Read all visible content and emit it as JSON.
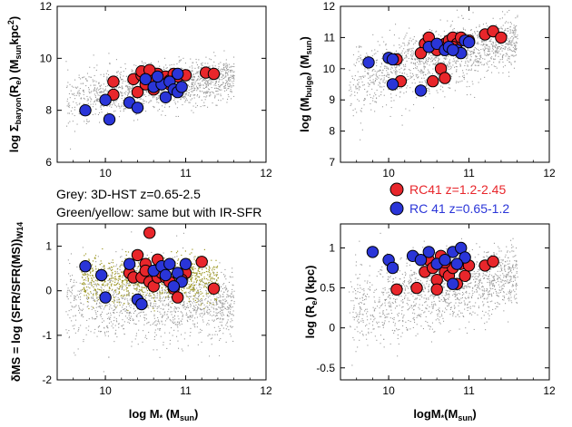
{
  "colors": {
    "grey": "#9a9a9a",
    "olive": "#9f9a2a",
    "red": "#e8262b",
    "blue": "#2a35d8",
    "outline": "#000000",
    "legend_red_text": "#e8262b",
    "legend_blue_text": "#2a35d8"
  },
  "notes": {
    "line1": "Grey: 3D-HST z=0.65-2.5",
    "line2": "Green/yellow: same but with IR-SFR"
  },
  "legend": {
    "red_label": "RC41 z=1.2-2.45",
    "blue_label": "RC 41 z=0.65-1.2"
  },
  "chart_data": [
    {
      "id": "top-left",
      "type": "scatter",
      "title": "",
      "xlabel": "",
      "ylabel": "log Σbaryon(Re)  (Msun kpc-2)",
      "ylabel_parts": {
        "pre": "log Σ",
        "sub1": "baryon",
        "mid": "(R",
        "sub2": "e",
        "post": ")   (M",
        "sub3": "sun",
        "post2": "kpc",
        "sup": "2",
        "end": ")"
      },
      "xlim": [
        9.4,
        12.0
      ],
      "ylim": [
        6,
        12
      ],
      "xticks": [
        10,
        11,
        12
      ],
      "yticks": [
        6,
        8,
        10,
        12
      ],
      "background_cloud": {
        "name": "3D-HST",
        "color": "grey",
        "x_range": [
          9.5,
          11.6
        ],
        "y_center": [
          8.4,
          9.3
        ],
        "spread": 0.55
      },
      "series": [
        {
          "name": "RC41 z=1.2-2.45",
          "color": "red",
          "points": [
            [
              10.1,
              9.1
            ],
            [
              10.35,
              9.2
            ],
            [
              10.45,
              9.35
            ],
            [
              10.5,
              9.0
            ],
            [
              10.55,
              9.3
            ],
            [
              10.6,
              9.2
            ],
            [
              10.65,
              9.4
            ],
            [
              10.7,
              9.1
            ],
            [
              10.75,
              9.3
            ],
            [
              10.8,
              9.15
            ],
            [
              10.85,
              9.4
            ],
            [
              10.9,
              9.3
            ],
            [
              11.25,
              9.45
            ],
            [
              11.35,
              9.4
            ],
            [
              10.4,
              8.7
            ],
            [
              10.6,
              8.8
            ],
            [
              10.1,
              8.6
            ],
            [
              10.45,
              9.5
            ],
            [
              10.55,
              9.55
            ],
            [
              11.0,
              9.35
            ],
            [
              10.8,
              9.0
            ]
          ]
        },
        {
          "name": "RC 41 z=0.65-1.2",
          "color": "blue",
          "points": [
            [
              9.75,
              8.0
            ],
            [
              10.0,
              8.4
            ],
            [
              10.05,
              7.65
            ],
            [
              10.3,
              8.3
            ],
            [
              10.4,
              8.1
            ],
            [
              10.5,
              9.2
            ],
            [
              10.6,
              8.9
            ],
            [
              10.7,
              9.0
            ],
            [
              10.75,
              8.5
            ],
            [
              10.8,
              9.1
            ],
            [
              10.85,
              8.8
            ],
            [
              10.9,
              8.7
            ],
            [
              10.95,
              8.9
            ],
            [
              10.65,
              9.3
            ],
            [
              10.9,
              9.4
            ]
          ]
        }
      ]
    },
    {
      "id": "top-right",
      "type": "scatter",
      "title": "",
      "xlabel": "",
      "ylabel": "log (Mbulge)  (Msun)",
      "xlim": [
        9.4,
        12.0
      ],
      "ylim": [
        7,
        12
      ],
      "xticks": [
        10,
        11,
        12
      ],
      "yticks": [
        7,
        8,
        9,
        10,
        11,
        12
      ],
      "background_cloud": {
        "name": "3D-HST",
        "color": "grey",
        "x_range": [
          9.5,
          11.6
        ],
        "y_center": [
          9.6,
          10.9
        ],
        "spread": 0.6
      },
      "series": [
        {
          "name": "RC41 z=1.2-2.45",
          "color": "red",
          "points": [
            [
              10.1,
              10.3
            ],
            [
              10.15,
              9.6
            ],
            [
              10.45,
              10.8
            ],
            [
              10.5,
              11.0
            ],
            [
              10.55,
              10.7
            ],
            [
              10.6,
              10.6
            ],
            [
              10.65,
              10.0
            ],
            [
              10.7,
              10.8
            ],
            [
              10.75,
              10.9
            ],
            [
              10.8,
              11.0
            ],
            [
              10.85,
              10.8
            ],
            [
              10.9,
              11.0
            ],
            [
              11.2,
              11.1
            ],
            [
              11.3,
              11.2
            ],
            [
              11.4,
              11.0
            ],
            [
              10.4,
              10.5
            ],
            [
              10.55,
              9.6
            ],
            [
              10.7,
              9.7
            ],
            [
              10.8,
              10.7
            ],
            [
              11.0,
              10.9
            ]
          ]
        },
        {
          "name": "RC 41 z=0.65-1.2",
          "color": "blue",
          "points": [
            [
              9.75,
              10.2
            ],
            [
              10.0,
              10.35
            ],
            [
              10.05,
              10.3
            ],
            [
              10.05,
              9.5
            ],
            [
              10.4,
              9.3
            ],
            [
              10.5,
              10.7
            ],
            [
              10.6,
              10.8
            ],
            [
              10.7,
              10.6
            ],
            [
              10.75,
              10.7
            ],
            [
              10.85,
              10.6
            ],
            [
              10.9,
              10.5
            ],
            [
              10.95,
              10.9
            ],
            [
              11.0,
              10.85
            ],
            [
              10.8,
              10.6
            ]
          ]
        }
      ]
    },
    {
      "id": "bottom-left",
      "type": "scatter",
      "title": "",
      "xlabel": "log M* (Msun)",
      "ylabel": "δMS = log (SFR/SFR(MS))W14",
      "xlim": [
        9.4,
        12.0
      ],
      "ylim": [
        -2,
        1.5
      ],
      "xticks": [
        10,
        11,
        12
      ],
      "yticks": [
        -2,
        -1,
        0,
        1
      ],
      "background_cloud": {
        "name": "3D-HST",
        "color": "grey",
        "x_range": [
          9.5,
          11.6
        ],
        "y_center": [
          -0.2,
          -0.3
        ],
        "spread": 0.55
      },
      "olive_cloud": {
        "name": "IR-SFR",
        "color": "olive",
        "x_range": [
          9.7,
          11.4
        ],
        "y_center": [
          0.25,
          0.25
        ],
        "spread": 0.25
      },
      "series": [
        {
          "name": "RC41 z=1.2-2.45",
          "color": "red",
          "points": [
            [
              10.55,
              1.3
            ],
            [
              10.4,
              0.8
            ],
            [
              10.5,
              0.6
            ],
            [
              10.3,
              0.4
            ],
            [
              10.35,
              0.3
            ],
            [
              10.45,
              0.3
            ],
            [
              10.5,
              0.45
            ],
            [
              10.55,
              0.2
            ],
            [
              10.6,
              0.1
            ],
            [
              10.65,
              0.3
            ],
            [
              10.7,
              0.4
            ],
            [
              10.75,
              0.3
            ],
            [
              10.8,
              0.2
            ],
            [
              10.85,
              0.05
            ],
            [
              10.9,
              -0.15
            ],
            [
              11.0,
              0.4
            ],
            [
              11.2,
              0.65
            ],
            [
              11.35,
              0.05
            ],
            [
              10.65,
              0.7
            ],
            [
              10.95,
              0.25
            ]
          ]
        },
        {
          "name": "RC 41 z=0.65-1.2",
          "color": "blue",
          "points": [
            [
              9.75,
              0.55
            ],
            [
              9.95,
              0.35
            ],
            [
              10.0,
              -0.15
            ],
            [
              10.3,
              0.6
            ],
            [
              10.4,
              -0.2
            ],
            [
              10.45,
              -0.3
            ],
            [
              10.6,
              0.45
            ],
            [
              10.7,
              0.55
            ],
            [
              10.8,
              0.6
            ],
            [
              10.9,
              0.4
            ],
            [
              10.95,
              0.2
            ],
            [
              11.0,
              0.6
            ],
            [
              10.85,
              0.1
            ],
            [
              10.75,
              0.35
            ]
          ]
        }
      ]
    },
    {
      "id": "bottom-right",
      "type": "scatter",
      "title": "",
      "xlabel": "logM*(Msun)",
      "ylabel": "log (Re)  (kpc)",
      "xlim": [
        9.4,
        12.0
      ],
      "ylim": [
        -0.65,
        1.3
      ],
      "xticks": [
        10,
        11,
        12
      ],
      "yticks": [
        -0.5,
        0,
        0.5,
        1
      ],
      "background_cloud": {
        "name": "3D-HST",
        "color": "grey",
        "x_range": [
          9.5,
          11.6
        ],
        "y_center": [
          0.25,
          0.65
        ],
        "spread": 0.28
      },
      "series": [
        {
          "name": "RC41 z=1.2-2.45",
          "color": "red",
          "points": [
            [
              10.1,
              0.48
            ],
            [
              10.35,
              0.5
            ],
            [
              10.45,
              0.7
            ],
            [
              10.5,
              0.85
            ],
            [
              10.55,
              0.75
            ],
            [
              10.6,
              0.6
            ],
            [
              10.65,
              0.9
            ],
            [
              10.7,
              0.7
            ],
            [
              10.75,
              0.65
            ],
            [
              10.8,
              0.75
            ],
            [
              10.85,
              0.55
            ],
            [
              10.9,
              0.8
            ],
            [
              10.95,
              0.65
            ],
            [
              11.2,
              0.78
            ],
            [
              11.3,
              0.83
            ],
            [
              10.6,
              0.48
            ],
            [
              10.7,
              0.82
            ],
            [
              11.0,
              0.78
            ]
          ]
        },
        {
          "name": "RC 41 z=0.65-1.2",
          "color": "blue",
          "points": [
            [
              9.8,
              0.95
            ],
            [
              10.0,
              0.85
            ],
            [
              10.05,
              0.75
            ],
            [
              10.3,
              0.9
            ],
            [
              10.4,
              0.85
            ],
            [
              10.5,
              0.95
            ],
            [
              10.6,
              0.8
            ],
            [
              10.7,
              0.85
            ],
            [
              10.8,
              0.95
            ],
            [
              10.9,
              1.0
            ],
            [
              10.95,
              0.88
            ],
            [
              10.8,
              0.55
            ],
            [
              10.85,
              0.8
            ]
          ]
        }
      ]
    }
  ]
}
